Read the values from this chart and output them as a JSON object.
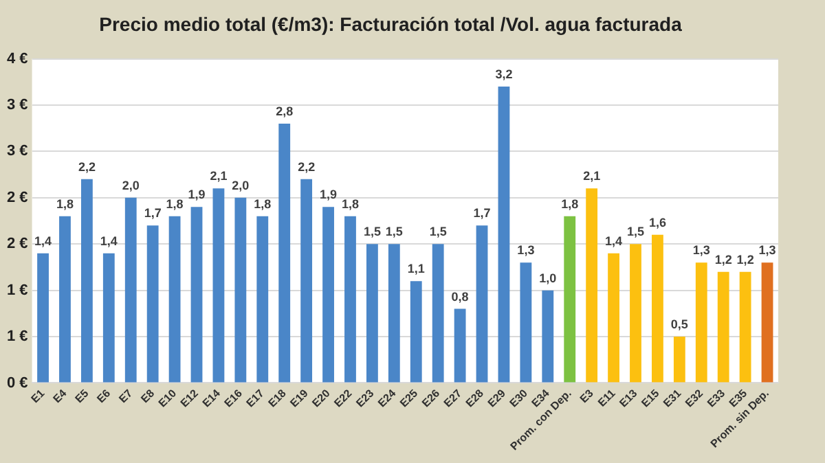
{
  "chart_data": {
    "type": "bar",
    "title": "Precio medio total (€/m3): Facturación total /Vol. agua facturada",
    "categories": [
      "E1",
      "E4",
      "E5",
      "E6",
      "E7",
      "E8",
      "E10",
      "E12",
      "E14",
      "E16",
      "E17",
      "E18",
      "E19",
      "E20",
      "E22",
      "E23",
      "E24",
      "E25",
      "E26",
      "E27",
      "E28",
      "E29",
      "E30",
      "E34",
      "Prom. con Dep.",
      "E3",
      "E11",
      "E13",
      "E15",
      "E31",
      "E32",
      "E33",
      "E35",
      "Prom. sin Dep."
    ],
    "values": [
      1.4,
      1.8,
      2.2,
      1.4,
      2.0,
      1.7,
      1.8,
      1.9,
      2.1,
      2.0,
      1.8,
      2.8,
      2.2,
      1.9,
      1.8,
      1.5,
      1.5,
      1.1,
      1.5,
      0.8,
      1.7,
      3.2,
      1.3,
      1.0,
      1.8,
      2.1,
      1.4,
      1.5,
      1.6,
      0.5,
      1.3,
      1.2,
      1.2,
      1.3
    ],
    "value_labels": [
      "1,4",
      "1,8",
      "2,2",
      "1,4",
      "2,0",
      "1,7",
      "1,8",
      "1,9",
      "2,1",
      "2,0",
      "1,8",
      "2,8",
      "2,2",
      "1,9",
      "1,8",
      "1,5",
      "1,5",
      "1,1",
      "1,5",
      "0,8",
      "1,7",
      "3,2",
      "1,3",
      "1,0",
      "1,8",
      "2,1",
      "1,4",
      "1,5",
      "1,6",
      "0,5",
      "1,3",
      "1,2",
      "1,2",
      "1,3"
    ],
    "colors": [
      "#4a86c8",
      "#4a86c8",
      "#4a86c8",
      "#4a86c8",
      "#4a86c8",
      "#4a86c8",
      "#4a86c8",
      "#4a86c8",
      "#4a86c8",
      "#4a86c8",
      "#4a86c8",
      "#4a86c8",
      "#4a86c8",
      "#4a86c8",
      "#4a86c8",
      "#4a86c8",
      "#4a86c8",
      "#4a86c8",
      "#4a86c8",
      "#4a86c8",
      "#4a86c8",
      "#4a86c8",
      "#4a86c8",
      "#4a86c8",
      "#7dc242",
      "#fcc010",
      "#fcc010",
      "#fcc010",
      "#fcc010",
      "#fcc010",
      "#fcc010",
      "#fcc010",
      "#fcc010",
      "#e07020"
    ],
    "ylim": [
      0,
      3.5
    ],
    "yticks": [
      {
        "value": 0,
        "label": "0 €"
      },
      {
        "value": 0.5,
        "label": "1 €"
      },
      {
        "value": 1,
        "label": "1 €"
      },
      {
        "value": 1.5,
        "label": "2 €"
      },
      {
        "value": 2,
        "label": "2 €"
      },
      {
        "value": 2.5,
        "label": "3 €"
      },
      {
        "value": 3,
        "label": "3 €"
      },
      {
        "value": 3.5,
        "label": "4 €"
      }
    ],
    "grid": "y",
    "legend": false
  }
}
